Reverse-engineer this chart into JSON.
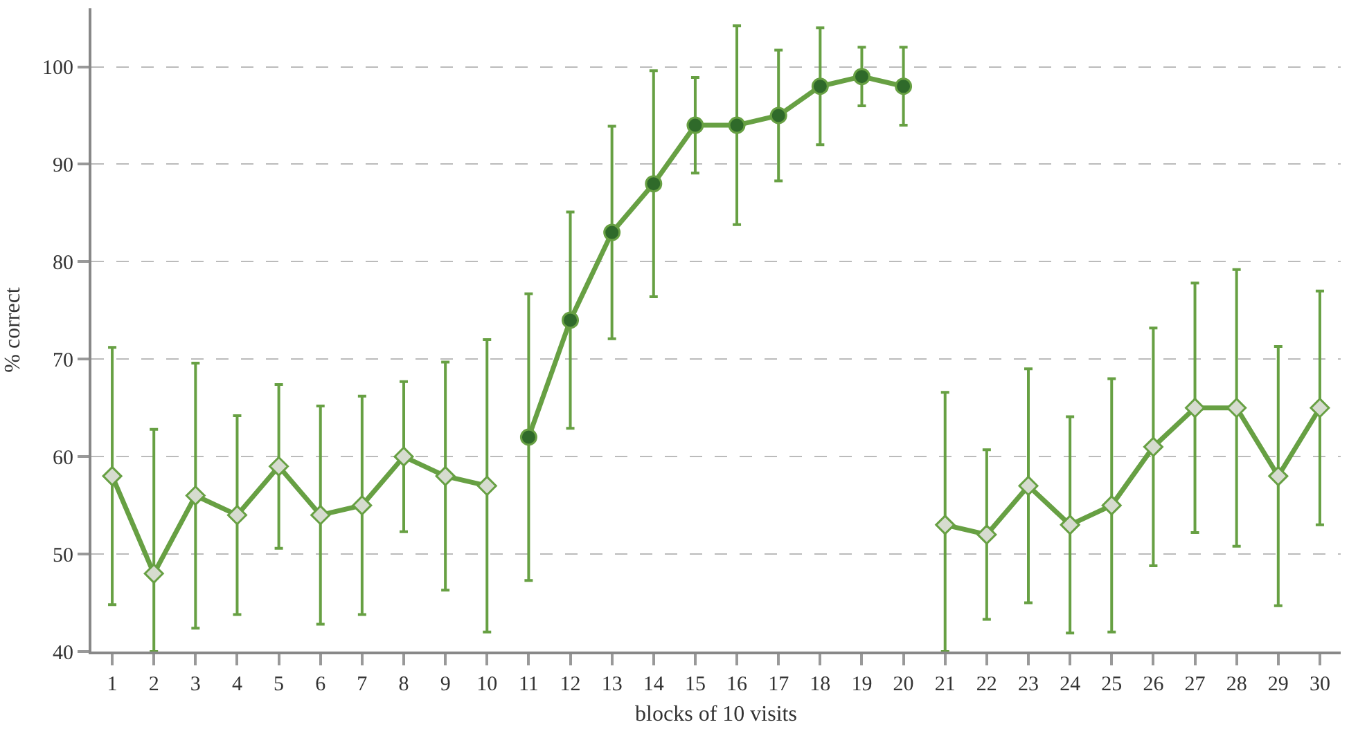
{
  "chart_data": {
    "type": "line",
    "xlabel": "blocks of 10 visits",
    "ylabel": "% correct",
    "xlim": [
      0.5,
      30.5
    ],
    "xticks": [
      1,
      2,
      3,
      4,
      5,
      6,
      7,
      8,
      9,
      10,
      11,
      12,
      13,
      14,
      15,
      16,
      17,
      18,
      19,
      20,
      21,
      22,
      23,
      24,
      25,
      26,
      27,
      28,
      29,
      30
    ],
    "ylim": [
      40,
      106
    ],
    "yticks": [
      40,
      50,
      60,
      70,
      80,
      90,
      100
    ],
    "grid": "y",
    "series": [
      {
        "color": "#67a043",
        "marker": "diamond",
        "x": [
          1,
          2,
          3,
          4,
          5,
          6,
          7,
          8,
          9,
          10
        ],
        "values": [
          58,
          48,
          56,
          54,
          59,
          54,
          55,
          60,
          58,
          57
        ],
        "errors": [
          13.2,
          [
            40,
            62.8
          ],
          13.6,
          10.2,
          8.4,
          11.2,
          11.2,
          7.7,
          11.7,
          15
        ]
      },
      {
        "color": "#67a043",
        "marker": "circle",
        "x": [
          11,
          12,
          13,
          14,
          15,
          16,
          17,
          18,
          19,
          20
        ],
        "values": [
          62,
          74,
          83,
          88,
          94,
          94,
          95,
          98,
          99,
          98
        ],
        "errors": [
          14.7,
          11.1,
          10.9,
          11.6,
          4.9,
          10.2,
          6.7,
          6,
          3,
          4
        ]
      },
      {
        "color": "#67a043",
        "marker": "diamond",
        "x": [
          21,
          22,
          23,
          24,
          25,
          26,
          27,
          28,
          29,
          30
        ],
        "values": [
          53,
          52,
          57,
          53,
          55,
          61,
          65,
          65,
          58,
          65
        ],
        "errors": [
          [
            40,
            66.6
          ],
          8.7,
          12,
          11.1,
          13,
          12.2,
          12.8,
          14.2,
          13.3,
          12
        ]
      }
    ]
  }
}
